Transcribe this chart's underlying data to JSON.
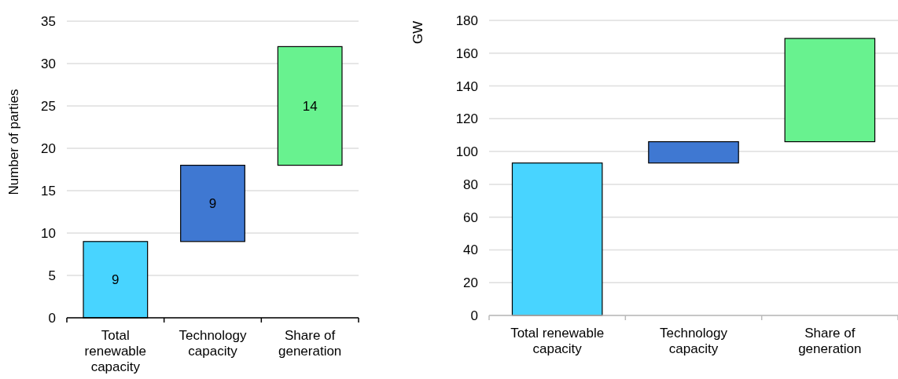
{
  "chart_data": [
    {
      "type": "bar",
      "ylabel": "Number of parties",
      "categories": [
        "Total renewable capacity",
        "Technology capacity",
        "Share of generation"
      ],
      "values": [
        9,
        9,
        14
      ],
      "base": [
        0,
        9,
        18
      ],
      "colors": [
        "#48d4ff",
        "#3f78d2",
        "#68f28f"
      ],
      "ylim": [
        0,
        35
      ],
      "yticks": [
        0,
        5,
        10,
        15,
        20,
        25,
        30,
        35
      ],
      "grid": "y",
      "data_labels": true
    },
    {
      "type": "bar",
      "ylabel": "GW",
      "categories": [
        "Total renewable capacity",
        "Technology capacity",
        "Share of generation"
      ],
      "values": [
        93,
        13,
        63
      ],
      "base": [
        0,
        93,
        106
      ],
      "colors": [
        "#48d4ff",
        "#3f78d2",
        "#68f28f"
      ],
      "ylim": [
        0,
        180
      ],
      "yticks": [
        0,
        20,
        40,
        60,
        80,
        100,
        120,
        140,
        160,
        180
      ],
      "grid": "y"
    }
  ]
}
